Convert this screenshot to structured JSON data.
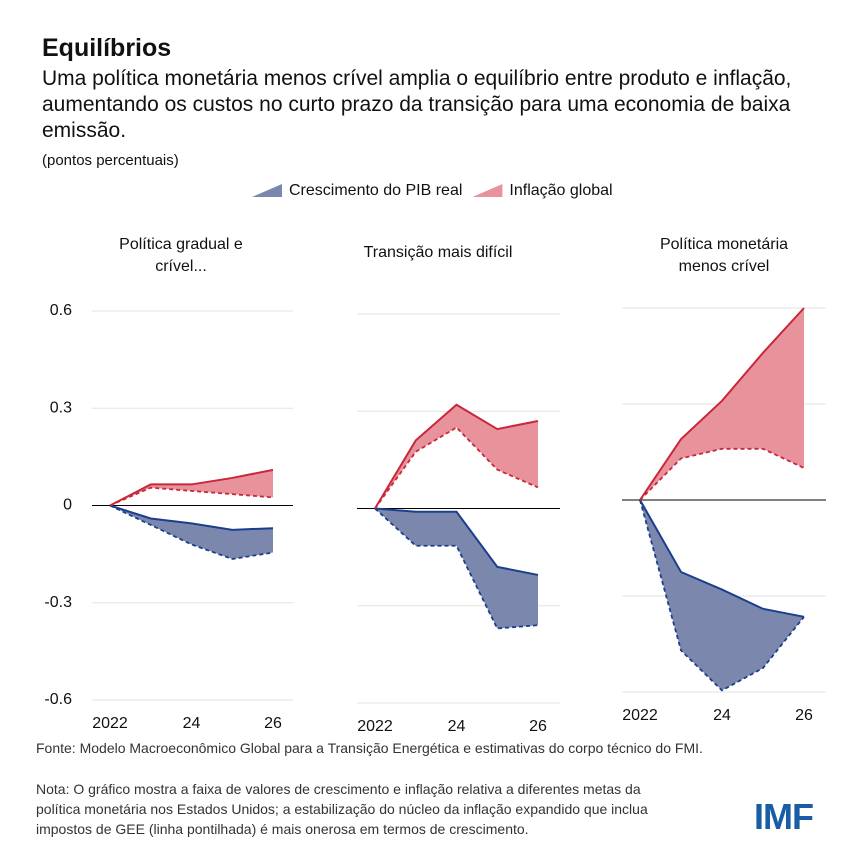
{
  "header": {
    "title": "Equilíbrios",
    "subtitle": "Uma política monetária menos crível amplia o equilíbrio entre produto e inflação, aumentando os custos no curto prazo da transição para uma economia de baixa emissão.",
    "unit": "(pontos percentuais)"
  },
  "chart_data": [
    {
      "type": "area",
      "title": "Política gradual e crível...",
      "x": [
        2022,
        2023,
        2024,
        2025,
        2026
      ],
      "xlim": [
        2022,
        2026
      ],
      "xticks": [
        2022,
        {
          "value": 2024,
          "label": "24"
        },
        {
          "value": 2026,
          "label": "26"
        }
      ],
      "ylim": [
        -0.6,
        0.6
      ],
      "yticks": [
        -0.6,
        -0.3,
        0.0,
        0.3,
        0.6
      ],
      "grid": true,
      "series": [
        {
          "name": "Crescimento do PIB real",
          "color": "#7b87ad",
          "line_color": "#1b3f8b",
          "values": [
            0,
            -0.04,
            -0.055,
            -0.075,
            -0.07
          ],
          "alt_values": [
            0,
            -0.06,
            -0.12,
            -0.165,
            -0.145
          ]
        },
        {
          "name": "Inflação global",
          "color": "#e8939c",
          "line_color": "#c8283a",
          "values": [
            0,
            0.065,
            0.065,
            0.085,
            0.11
          ],
          "alt_values": [
            0,
            0.055,
            0.045,
            0.035,
            0.025
          ]
        }
      ]
    },
    {
      "type": "area",
      "title": "Transição mais difícil",
      "x": [
        2022,
        2023,
        2024,
        2025,
        2026
      ],
      "xlim": [
        2022,
        2026
      ],
      "xticks": [
        2022,
        {
          "value": 2024,
          "label": "24"
        },
        {
          "value": 2026,
          "label": "26"
        }
      ],
      "ylim": [
        -0.6,
        0.6
      ],
      "yticks": [
        -0.6,
        -0.3,
        0.0,
        0.3,
        0.6
      ],
      "grid": true,
      "series": [
        {
          "color": "#7b87ad",
          "line_color": "#1b3f8b",
          "values": [
            0,
            -0.01,
            -0.01,
            -0.18,
            -0.205
          ],
          "alt_values": [
            0,
            -0.115,
            -0.115,
            -0.37,
            -0.36
          ]
        },
        {
          "color": "#e8939c",
          "line_color": "#c8283a",
          "values": [
            0,
            0.21,
            0.32,
            0.245,
            0.27
          ],
          "alt_values": [
            0,
            0.175,
            0.25,
            0.12,
            0.065
          ]
        }
      ]
    },
    {
      "type": "area",
      "title": "Política monetária menos crível",
      "x": [
        2022,
        2023,
        2024,
        2025,
        2026
      ],
      "xlim": [
        2022,
        2026
      ],
      "xticks": [
        2022,
        {
          "value": 2024,
          "label": "24"
        },
        {
          "value": 2026,
          "label": "26"
        }
      ],
      "ylim": [
        -0.6,
        0.6
      ],
      "yticks": [
        -0.6,
        -0.3,
        0.0,
        0.3,
        0.6
      ],
      "grid": true,
      "series": [
        {
          "color": "#7b87ad",
          "line_color": "#1b3f8b",
          "values": [
            0,
            -0.225,
            -0.28,
            -0.34,
            -0.365
          ],
          "alt_values": [
            0,
            -0.47,
            -0.595,
            -0.525,
            -0.365
          ]
        },
        {
          "color": "#e8939c",
          "line_color": "#c8283a",
          "values": [
            0,
            0.19,
            0.31,
            0.46,
            0.6
          ],
          "alt_values": [
            0,
            0.13,
            0.16,
            0.16,
            0.1
          ]
        }
      ]
    }
  ],
  "footer": {
    "source": "Fonte: Modelo Macroeconômico Global para a Transição Energética e estimativas do corpo técnico do FMI.",
    "note": "Nota: O gráfico mostra a faixa de valores de crescimento e inflação relativa a diferentes metas da política monetária nos Estados Unidos; a estabilização do núcleo da inflação expandido que inclua impostos de GEE (linha pontilhada) é mais onerosa em termos de crescimento.",
    "logo": "IMF"
  }
}
